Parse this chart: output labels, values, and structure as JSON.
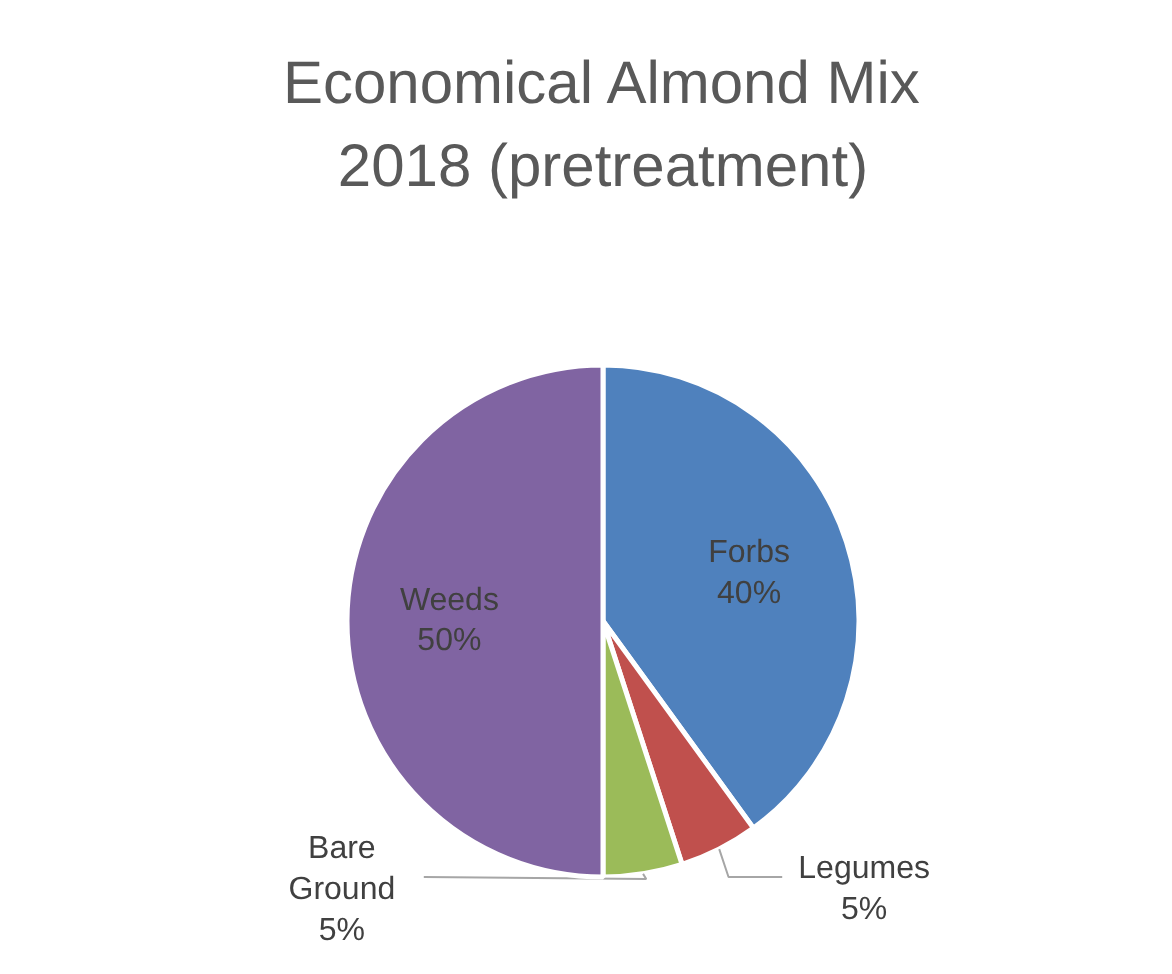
{
  "chart_data": {
    "type": "pie",
    "title": "Economical Almond Mix 2018 (pretreatment)",
    "categories": [
      "Forbs",
      "Legumes",
      "Bare Ground",
      "Weeds"
    ],
    "values": [
      40,
      5,
      5,
      50
    ],
    "colors": [
      "#4f81bd",
      "#c0504d",
      "#9bbb59",
      "#8064a2"
    ],
    "value_labels": [
      "40%",
      "5%",
      "5%",
      "50%"
    ]
  }
}
